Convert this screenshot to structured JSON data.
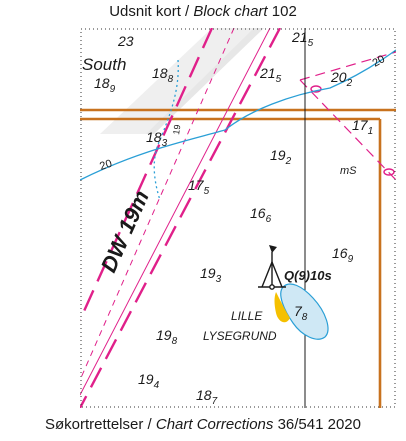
{
  "captions": {
    "top_prefix": "Udsnit kort / ",
    "top_italic": "Block chart",
    "top_suffix": " 102",
    "bottom_prefix": "Søkortrettelser / ",
    "bottom_italic": "Chart Corrections",
    "bottom_suffix": " 36/541 2020"
  },
  "colors": {
    "magenta": "#e0208a",
    "contour": "#2a9fd6",
    "route_orange": "#c8721e",
    "shoal_fill": "#cfe8f5",
    "light_flare": "#f5c000",
    "channel_fill": "#efefef"
  },
  "map": {
    "area_label": "South",
    "channel_label": "DW 19m",
    "light_label": "Q(9)10s",
    "shoal_name_line1": "LILLE",
    "shoal_name_line2": "LYSEGRUND",
    "bottom_quality": "mS",
    "contour_label": "20",
    "diagonal_contour_label": "19"
  },
  "soundings": [
    {
      "main": "23",
      "sub": ""
    },
    {
      "main": "21",
      "sub": "5"
    },
    {
      "main": "18",
      "sub": "9"
    },
    {
      "main": "18",
      "sub": "8"
    },
    {
      "main": "21",
      "sub": "5"
    },
    {
      "main": "20",
      "sub": "2"
    },
    {
      "main": "17",
      "sub": "1"
    },
    {
      "main": "18",
      "sub": "3"
    },
    {
      "main": "19",
      "sub": "2"
    },
    {
      "main": "17",
      "sub": "5"
    },
    {
      "main": "16",
      "sub": "6"
    },
    {
      "main": "16",
      "sub": "9"
    },
    {
      "main": "19",
      "sub": "3"
    },
    {
      "main": "7",
      "sub": "8"
    },
    {
      "main": "19",
      "sub": "8"
    },
    {
      "main": "19",
      "sub": "4"
    },
    {
      "main": "18",
      "sub": "7"
    }
  ]
}
